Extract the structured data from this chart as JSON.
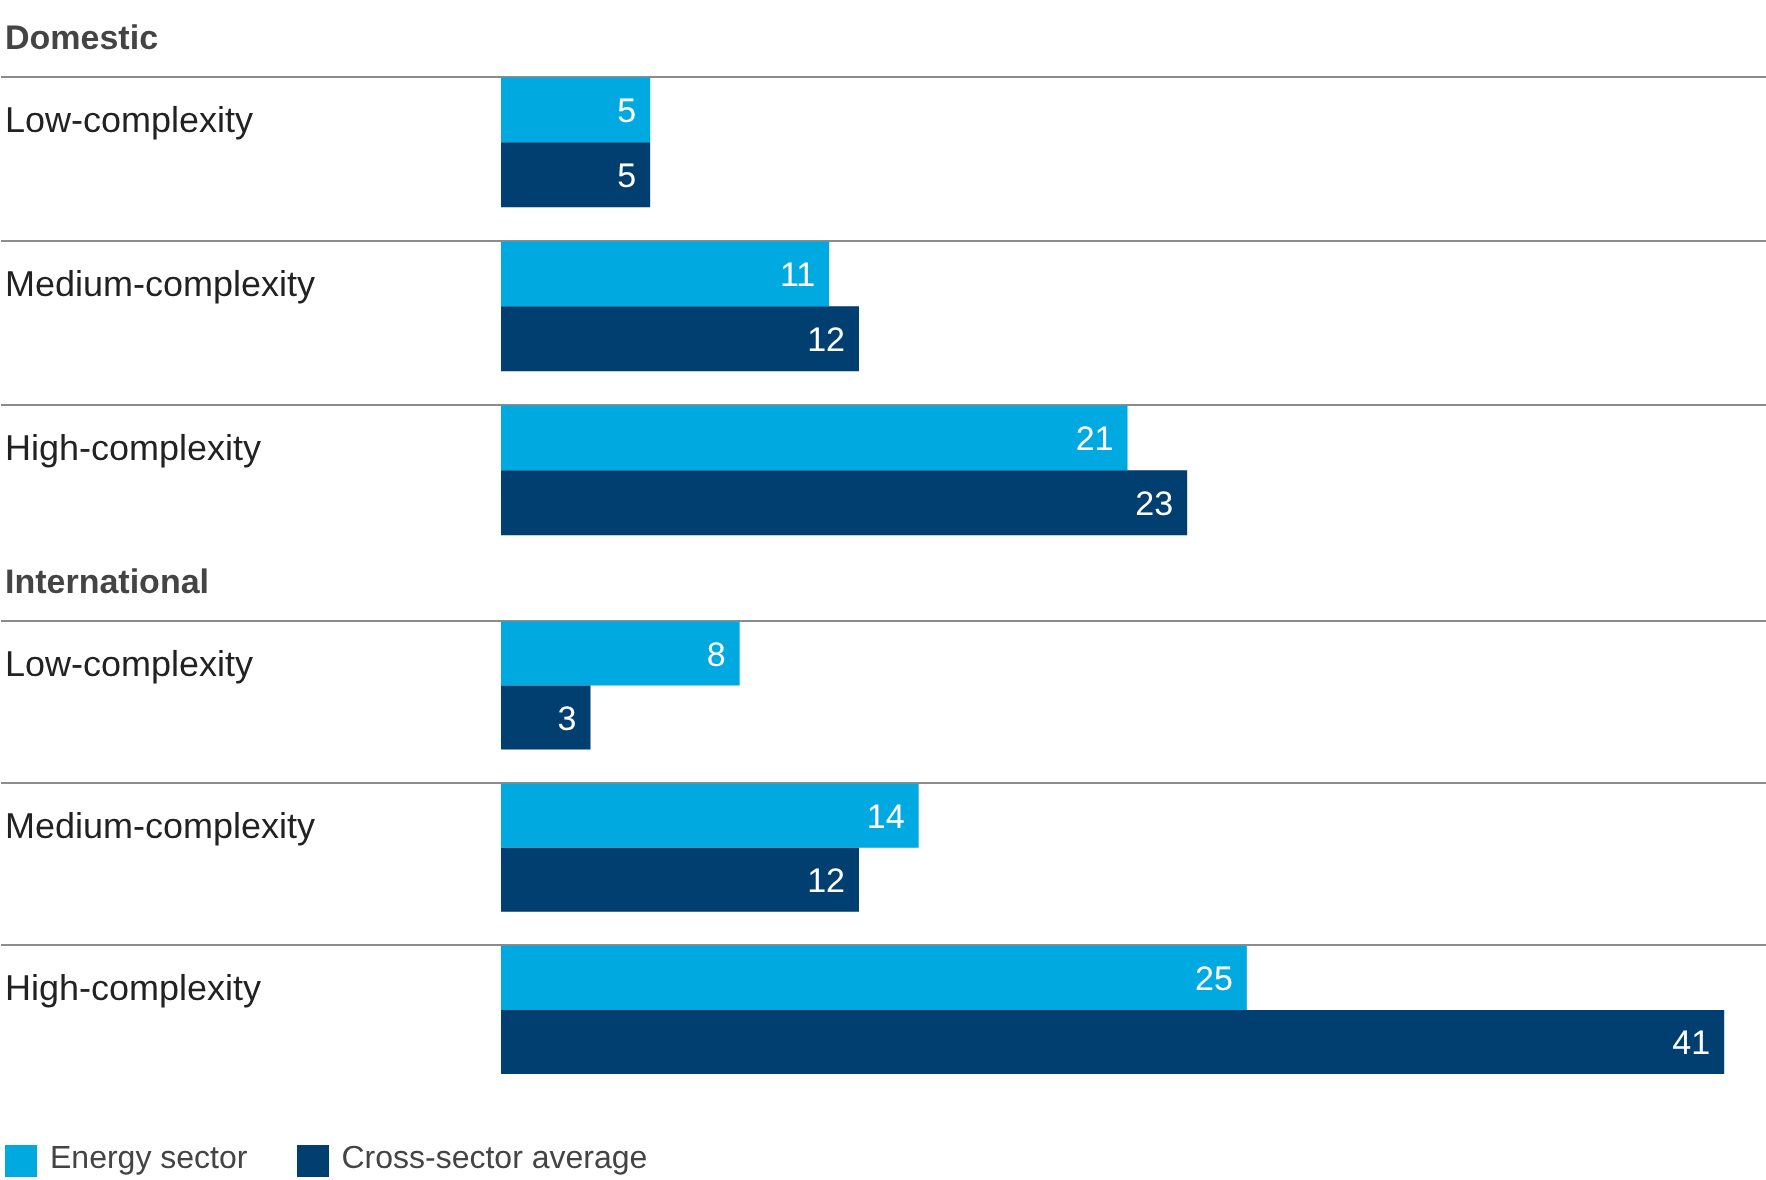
{
  "chart_data": [
    {
      "type": "bar",
      "orientation": "horizontal",
      "title": "Domestic",
      "categories": [
        "Low-complexity",
        "Medium-complexity",
        "High-complexity"
      ],
      "series": [
        {
          "color": "#00a9e0",
          "values": [
            5,
            11,
            21
          ]
        },
        {
          "color": "#003f6f",
          "values": [
            5,
            12,
            23
          ]
        }
      ],
      "data_labels": true,
      "grid": "y"
    },
    {
      "type": "bar",
      "orientation": "horizontal",
      "title": "International",
      "categories": [
        "Low-complexity",
        "Medium-complexity",
        "High-complexity"
      ],
      "series": [
        {
          "name": "Energy sector",
          "color": "#00a9e0",
          "values": [
            8,
            14,
            25
          ]
        },
        {
          "name": "Cross-sector average",
          "color": "#003f6f",
          "values": [
            3,
            12,
            41
          ]
        }
      ],
      "data_labels": true,
      "grid": "y",
      "legend": "bottom"
    }
  ]
}
